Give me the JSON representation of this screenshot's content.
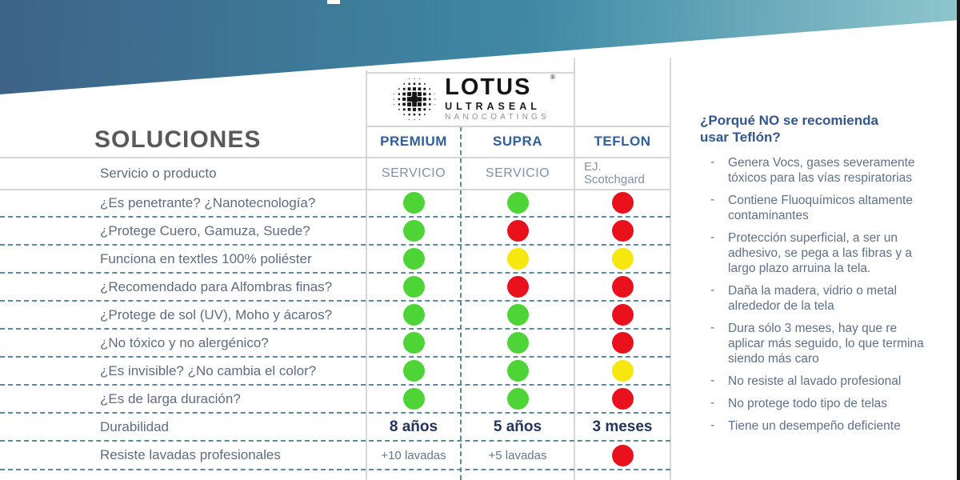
{
  "logo": {
    "brand": "LOTUS",
    "registered": "®",
    "line1": "ULTRASEAL",
    "line2": "NANOCOATINGS"
  },
  "table": {
    "title": "SOLUCIONES",
    "columns": [
      "PREMIUM",
      "SUPRA",
      "TEFLON"
    ],
    "service_row": {
      "label": "Servicio o producto",
      "values": [
        "SERVICIO",
        "SERVICIO",
        "EJ.\nScotchgard"
      ]
    },
    "feature_rows": [
      {
        "label": "¿Es penetrante? ¿Nanotecnología?",
        "dots": [
          "green",
          "green",
          "red"
        ]
      },
      {
        "label": "¿Protege Cuero, Gamuza, Suede?",
        "dots": [
          "green",
          "red",
          "red"
        ]
      },
      {
        "label": "Funciona en textles 100% poliéster",
        "dots": [
          "green",
          "yellow",
          "yellow"
        ]
      },
      {
        "label": "¿Recomendado para Alfombras finas?",
        "dots": [
          "green",
          "red",
          "red"
        ]
      },
      {
        "label": "¿Protege de sol (UV), Moho y ácaros?",
        "dots": [
          "green",
          "green",
          "red"
        ]
      },
      {
        "label": "¿No tóxico y no alergénico?",
        "dots": [
          "green",
          "green",
          "red"
        ]
      },
      {
        "label": "¿Es invisible? ¿No cambia el color?",
        "dots": [
          "green",
          "green",
          "yellow"
        ]
      },
      {
        "label": "¿Es de larga duración?",
        "dots": [
          "green",
          "green",
          "red"
        ]
      }
    ],
    "durability_row": {
      "label": "Durabilidad",
      "values": [
        "8 años",
        "5 años",
        "3 meses"
      ]
    },
    "washes_row": {
      "label": "Resiste lavadas profesionales",
      "premium": "+10 lavadas",
      "supra": "+5 lavadas",
      "teflon_dot": "red"
    },
    "dot_colors": {
      "green": "#4fd437",
      "yellow": "#f6e70f",
      "red": "#e8111c"
    }
  },
  "sidebar": {
    "heading": "¿Porqué NO se recomienda usar Teflón?",
    "marker": "-",
    "bullets": [
      "Genera Vocs, gases severamente tóxicos para las vías respiratorias",
      "Contiene Fluoquímicos altamente contaminantes",
      "Protección superficial, a ser un adhesivo, se pega a las fibras y a largo plazo arruina la tela.",
      "Daña la madera, vidrio o metal alrededor de la tela",
      "Dura sólo 3 meses, hay que re aplicar más seguido, lo que termina siendo más caro",
      "No resiste al lavado profesional",
      "No protege todo tipo de telas",
      "Tiene un desempeño deficiente"
    ]
  },
  "colors": {
    "band_left": "#3d6386",
    "band_mid": "#3f89a5",
    "band_right": "#8fc6cd",
    "grid_line": "#d4d6d8",
    "dash_line": "#5b8aa0",
    "header_blue": "#2f5f9c",
    "label_slate": "#5e6c80",
    "durability_navy": "#21365f"
  }
}
